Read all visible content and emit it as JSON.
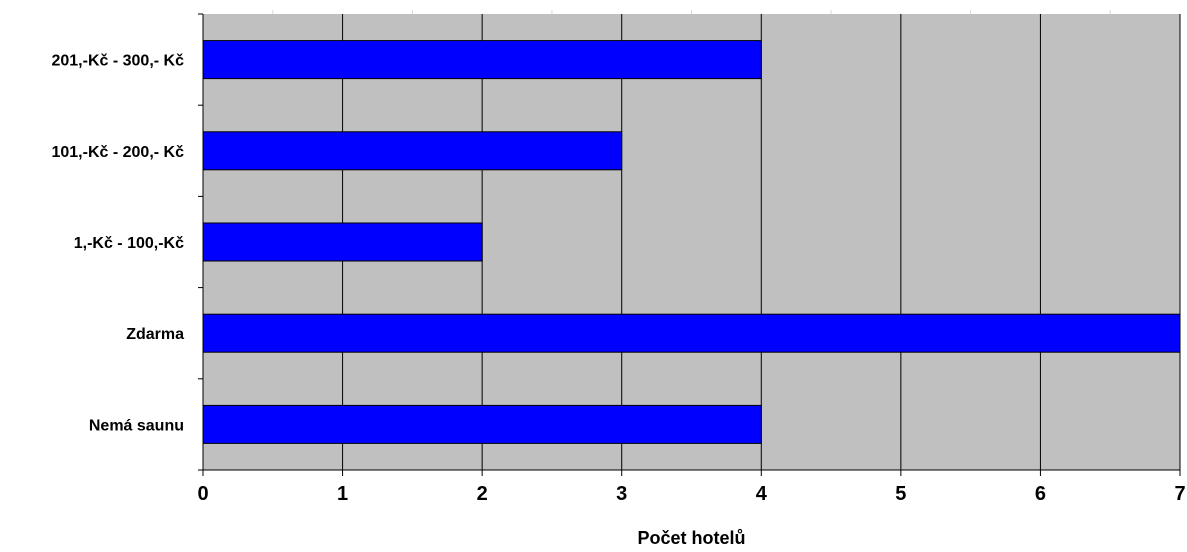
{
  "chart_data": {
    "type": "bar",
    "orientation": "horizontal",
    "categories": [
      "201,-Kč - 300,- Kč",
      "101,-Kč - 200,- Kč",
      "1,-Kč - 100,-Kč",
      "Zdarma",
      "Nemá saunu"
    ],
    "values": [
      4,
      3,
      2,
      7,
      4
    ],
    "xlabel": "Počet hotelů",
    "ylabel": "",
    "xlim": [
      0,
      7
    ],
    "xticks": [
      "0",
      "1",
      "2",
      "3",
      "4",
      "5",
      "6",
      "7"
    ],
    "grid": true,
    "colors": {
      "bar": "#0000ff",
      "plot_background": "#c0c0c0",
      "gridline": "#000000"
    }
  }
}
